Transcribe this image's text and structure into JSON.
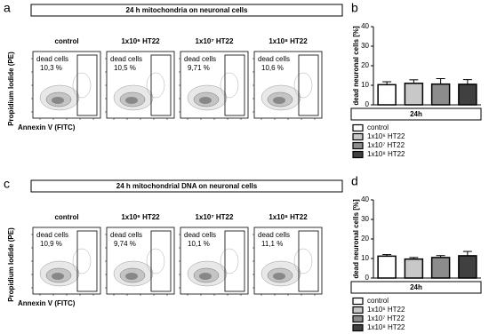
{
  "panels": [
    {
      "panel_label": "a",
      "title": "24 h mitochondria on neuronal cells",
      "y_label": "Propidium Iodide (PE)",
      "x_label": "Annexin V (FITC)",
      "plots": [
        {
          "label": "control",
          "gate": "dead cells",
          "percent": "10,3 %"
        },
        {
          "label": "1x10⁶ HT22",
          "gate": "dead cells",
          "percent": "10,5 %"
        },
        {
          "label": "1x10⁷ HT22",
          "gate": "dead cells",
          "percent": "9,71 %"
        },
        {
          "label": "1x10⁸ HT22",
          "gate": "dead cells",
          "percent": "10,6 %"
        }
      ]
    },
    {
      "panel_label": "c",
      "title": "24 h mitochondrial DNA on neuronal cells",
      "y_label": "Propidium Iodide (PE)",
      "x_label": "Annexin V (FITC)",
      "plots": [
        {
          "label": "control",
          "gate": "dead cells",
          "percent": "10,9 %"
        },
        {
          "label": "1x10⁶ HT22",
          "gate": "dead cells",
          "percent": "9,74 %"
        },
        {
          "label": "1x10⁷ HT22",
          "gate": "dead cells",
          "percent": "10,1 %"
        },
        {
          "label": "1x10⁸ HT22",
          "gate": "dead cells",
          "percent": "11,1 %"
        }
      ]
    }
  ],
  "chart_data": [
    {
      "type": "bar",
      "panel_label": "b",
      "ylabel": "dead neuronal cells [%]",
      "group": "24h",
      "categories": [
        "control",
        "1x10⁶ HT22",
        "1x10⁷ HT22",
        "1x10⁸ HT22"
      ],
      "colors": [
        "#ffffff",
        "#c8c8c8",
        "#8c8c8c",
        "#404040"
      ],
      "values": [
        10.3,
        11,
        10.6,
        10.5
      ],
      "errors": [
        1.5,
        1.8,
        2.8,
        2.4
      ],
      "ylim": [
        0,
        40
      ],
      "yticks": [
        0,
        10,
        20,
        30,
        40
      ]
    },
    {
      "type": "bar",
      "panel_label": "d",
      "ylabel": "dead neuronal cells [%]",
      "group": "24h",
      "categories": [
        "control",
        "1x10⁶ HT22",
        "1x10⁷ HT22",
        "1x10⁸ HT22"
      ],
      "colors": [
        "#ffffff",
        "#c8c8c8",
        "#8c8c8c",
        "#404040"
      ],
      "values": [
        11.2,
        9.7,
        10.5,
        11.4
      ],
      "errors": [
        0.8,
        0.8,
        1,
        2.2
      ],
      "ylim": [
        0,
        40
      ],
      "yticks": [
        0,
        10,
        20,
        30,
        40
      ]
    }
  ]
}
